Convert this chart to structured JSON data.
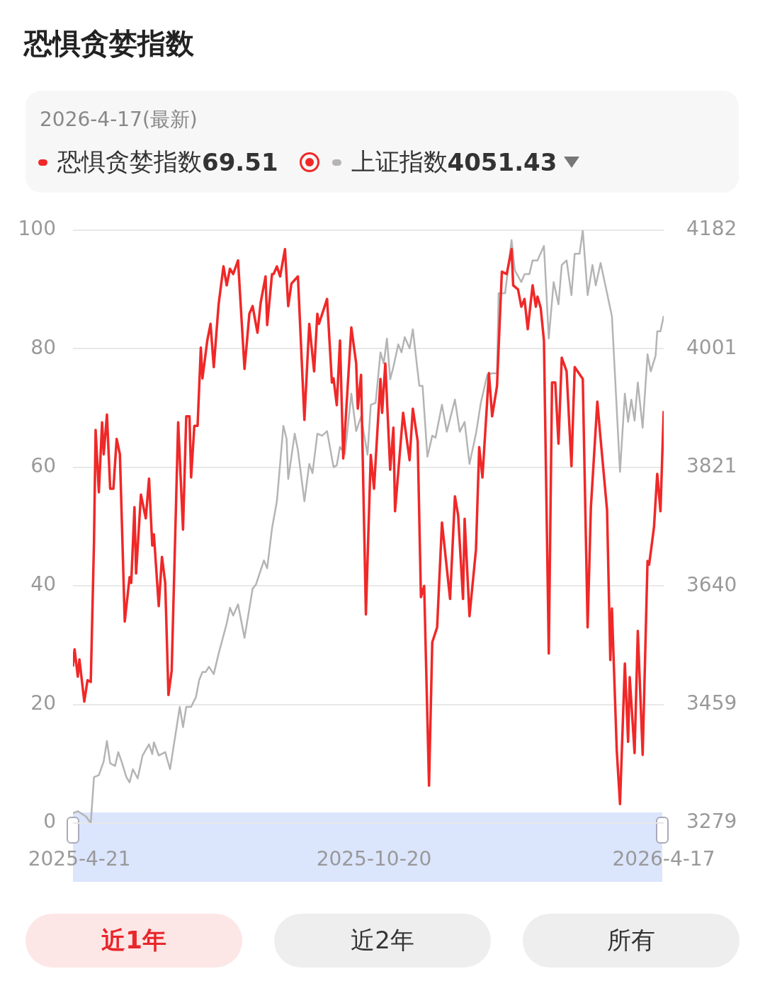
{
  "chart_data": {
    "type": "line",
    "title": "恐惧贪婪指数",
    "annotations": [
      "2026-4-17(最新)",
      "69.51",
      "4051.43",
      "近1年",
      "近2年",
      "所有"
    ],
    "legend": "top left",
    "grid": "y",
    "marker": "none",
    "xlim": [
      "2025-04-17",
      "2026-04-17"
    ],
    "xticks": [
      {
        "value": "2025-04-21",
        "label": "2025-4-21"
      },
      {
        "value": "2025-10-20",
        "label": "2025-10-20"
      },
      {
        "value": "2026-04-17",
        "label": "2026-4-17"
      }
    ],
    "ylim": [
      0,
      100
    ],
    "yticks": [
      0,
      20,
      40,
      60,
      80,
      100
    ],
    "y2lim": [
      3279,
      4182
    ],
    "y2ticks": [
      3279,
      3459,
      3640,
      3821,
      4001,
      4182
    ],
    "series": [
      {
        "name": "恐惧贪婪指数",
        "color": "#f02828",
        "x": [
          "2025-04-17",
          "2025-04-18",
          "2025-04-20",
          "2025-04-21",
          "2025-04-24",
          "2025-04-26",
          "2025-04-28",
          "2025-04-30",
          "2025-05-01",
          "2025-05-03",
          "2025-05-05",
          "2025-05-06",
          "2025-05-08",
          "2025-05-10",
          "2025-05-12",
          "2025-05-14",
          "2025-05-16",
          "2025-05-19",
          "2025-05-22",
          "2025-05-23",
          "2025-05-25",
          "2025-05-26",
          "2025-05-29",
          "2025-06-01",
          "2025-06-03",
          "2025-06-05",
          "2025-06-06",
          "2025-06-09",
          "2025-06-11",
          "2025-06-13",
          "2025-06-15",
          "2025-06-17",
          "2025-06-21",
          "2025-06-24",
          "2025-06-26",
          "2025-06-28",
          "2025-06-29",
          "2025-07-01",
          "2025-07-03",
          "2025-07-05",
          "2025-07-06",
          "2025-07-09",
          "2025-07-11",
          "2025-07-13",
          "2025-07-16",
          "2025-07-19",
          "2025-07-21",
          "2025-07-23",
          "2025-07-25",
          "2025-07-28",
          "2025-08-01",
          "2025-08-04",
          "2025-08-06",
          "2025-08-09",
          "2025-08-11",
          "2025-08-14",
          "2025-08-15",
          "2025-08-18",
          "2025-08-19",
          "2025-08-21",
          "2025-08-23",
          "2025-08-26",
          "2025-08-28",
          "2025-08-30",
          "2025-09-03",
          "2025-09-07",
          "2025-09-10",
          "2025-09-13",
          "2025-09-15",
          "2025-09-16",
          "2025-09-21",
          "2025-09-24",
          "2025-09-25",
          "2025-09-27",
          "2025-09-29",
          "2025-10-01",
          "2025-10-06",
          "2025-10-09",
          "2025-10-10",
          "2025-10-12",
          "2025-10-15",
          "2025-10-18",
          "2025-10-20",
          "2025-10-24",
          "2025-10-25",
          "2025-10-27",
          "2025-10-30",
          "2025-11-01",
          "2025-11-02",
          "2025-11-07",
          "2025-11-11",
          "2025-11-13",
          "2025-11-16",
          "2025-11-18",
          "2025-11-20",
          "2025-11-23",
          "2025-11-25",
          "2025-11-28",
          "2025-12-01",
          "2025-12-06",
          "2025-12-09",
          "2025-12-11",
          "2025-12-14",
          "2025-12-15",
          "2025-12-18",
          "2025-12-22",
          "2025-12-24",
          "2025-12-26",
          "2025-12-30",
          "2026-01-01",
          "2026-01-04",
          "2026-01-07",
          "2026-01-10",
          "2026-01-13",
          "2026-01-14",
          "2026-01-17",
          "2026-01-19",
          "2026-01-21",
          "2026-01-23",
          "2026-01-26",
          "2026-01-28",
          "2026-01-29",
          "2026-01-31",
          "2026-02-02",
          "2026-02-05",
          "2026-02-07",
          "2026-02-09",
          "2026-02-11",
          "2026-02-13",
          "2026-02-16",
          "2026-02-19",
          "2026-02-21",
          "2026-02-26",
          "2026-03-01",
          "2026-03-03",
          "2026-03-07",
          "2026-03-09",
          "2026-03-13",
          "2026-03-15",
          "2026-03-16",
          "2026-03-19",
          "2026-03-21",
          "2026-03-24",
          "2026-03-26",
          "2026-03-27",
          "2026-03-30",
          "2026-04-01",
          "2026-04-04",
          "2026-04-07",
          "2026-04-08",
          "2026-04-11",
          "2026-04-13",
          "2026-04-15",
          "2026-04-17"
        ],
        "values": [
          26.4,
          29.3,
          24.7,
          27.6,
          20.5,
          24.1,
          23.8,
          47.4,
          66.3,
          55.8,
          67.6,
          62.2,
          68.9,
          56.4,
          56.4,
          64.8,
          62.2,
          34.0,
          41.5,
          40.5,
          53.3,
          42.1,
          55.4,
          51.4,
          58.1,
          46.8,
          48.7,
          36.6,
          44.9,
          40.5,
          21.6,
          25.7,
          67.6,
          49.5,
          68.6,
          68.6,
          58.3,
          67.0,
          67.0,
          80.2,
          75.0,
          81.4,
          84.2,
          76.9,
          87.5,
          93.9,
          90.7,
          93.5,
          92.6,
          94.9,
          76.6,
          85.9,
          87.2,
          82.7,
          87.8,
          92.2,
          84.0,
          92.6,
          92.6,
          93.9,
          92.2,
          96.8,
          87.2,
          91.0,
          92.2,
          68.0,
          84.2,
          76.2,
          85.9,
          84.2,
          88.4,
          74.3,
          75.0,
          70.5,
          81.4,
          61.5,
          83.6,
          77.5,
          69.9,
          75.6,
          35.2,
          62.1,
          56.4,
          74.9,
          69.2,
          77.5,
          59.6,
          66.7,
          52.6,
          69.2,
          61.2,
          69.9,
          64.4,
          38.1,
          40.0,
          6.3,
          30.5,
          33.0,
          50.7,
          37.8,
          55.1,
          51.9,
          37.8,
          51.3,
          34.9,
          46.1,
          63.4,
          58.3,
          75.9,
          68.6,
          73.7,
          93.0,
          92.6,
          96.8,
          90.7,
          90.0,
          87.1,
          88.4,
          83.3,
          90.7,
          87.1,
          88.8,
          86.9,
          81.4,
          28.6,
          74.3,
          74.3,
          64.0,
          78.5,
          76.2,
          60.2,
          76.9,
          74.9,
          33.0,
          53.2,
          71.1,
          64.8,
          52.8,
          27.5,
          36.2,
          12.2,
          3.2,
          26.9,
          13.7,
          24.6,
          11.8,
          32.4,
          11.5,
          44.2,
          43.6,
          49.9,
          58.9,
          52.6,
          69.51
        ]
      },
      {
        "name": "上证指数",
        "color": "#b4b4b4",
        "axis": "y2",
        "x": [
          "2025-04-17",
          "2025-04-20",
          "2025-04-25",
          "2025-04-28",
          "2025-04-30",
          "2025-05-03",
          "2025-05-06",
          "2025-05-08",
          "2025-05-10",
          "2025-05-13",
          "2025-05-15",
          "2025-05-17",
          "2025-05-20",
          "2025-05-22",
          "2025-05-24",
          "2025-05-27",
          "2025-05-30",
          "2025-06-03",
          "2025-06-05",
          "2025-06-06",
          "2025-06-09",
          "2025-06-13",
          "2025-06-16",
          "2025-06-22",
          "2025-06-24",
          "2025-06-26",
          "2025-06-29",
          "2025-07-02",
          "2025-07-04",
          "2025-07-06",
          "2025-07-08",
          "2025-07-10",
          "2025-07-13",
          "2025-07-16",
          "2025-07-21",
          "2025-07-23",
          "2025-07-25",
          "2025-07-28",
          "2025-08-01",
          "2025-08-06",
          "2025-08-08",
          "2025-08-13",
          "2025-08-15",
          "2025-08-18",
          "2025-08-21",
          "2025-08-25",
          "2025-08-27",
          "2025-08-28",
          "2025-09-01",
          "2025-09-03",
          "2025-09-07",
          "2025-09-10",
          "2025-09-12",
          "2025-09-15",
          "2025-09-18",
          "2025-09-21",
          "2025-09-25",
          "2025-09-27",
          "2025-09-29",
          "2025-10-02",
          "2025-10-06",
          "2025-10-09",
          "2025-10-12",
          "2025-10-16",
          "2025-10-18",
          "2025-10-21",
          "2025-10-24",
          "2025-10-26",
          "2025-10-28",
          "2025-10-30",
          "2025-11-01",
          "2025-11-04",
          "2025-11-06",
          "2025-11-08",
          "2025-11-11",
          "2025-11-13",
          "2025-11-17",
          "2025-11-19",
          "2025-11-22",
          "2025-11-25",
          "2025-11-27",
          "2025-12-01",
          "2025-12-04",
          "2025-12-09",
          "2025-12-12",
          "2025-12-15",
          "2025-12-18",
          "2025-12-22",
          "2025-12-25",
          "2025-12-29",
          "2026-01-01",
          "2026-01-04",
          "2026-01-05",
          "2026-01-09",
          "2026-01-13",
          "2026-01-15",
          "2026-01-19",
          "2026-01-21",
          "2026-01-24",
          "2026-01-26",
          "2026-01-29",
          "2026-02-02",
          "2026-02-05",
          "2026-02-08",
          "2026-02-11",
          "2026-02-13",
          "2026-02-16",
          "2026-02-19",
          "2026-02-21",
          "2026-02-24",
          "2026-02-26",
          "2026-03-01",
          "2026-03-04",
          "2026-03-06",
          "2026-03-09",
          "2026-03-13",
          "2026-03-16",
          "2026-03-21",
          "2026-03-24",
          "2026-03-26",
          "2026-03-28",
          "2026-03-30",
          "2026-04-01",
          "2026-04-04",
          "2026-04-07",
          "2026-04-09",
          "2026-04-12",
          "2026-04-13",
          "2026-04-15",
          "2026-04-17"
        ],
        "values": [
          3294,
          3297,
          3289,
          3279,
          3349,
          3352,
          3373,
          3404,
          3370,
          3366,
          3387,
          3373,
          3349,
          3341,
          3361,
          3347,
          3382,
          3399,
          3384,
          3402,
          3382,
          3387,
          3361,
          3456,
          3425,
          3456,
          3456,
          3471,
          3497,
          3509,
          3509,
          3517,
          3506,
          3537,
          3583,
          3607,
          3595,
          3612,
          3561,
          3636,
          3642,
          3679,
          3667,
          3728,
          3769,
          3884,
          3864,
          3803,
          3872,
          3847,
          3769,
          3826,
          3812,
          3872,
          3869,
          3876,
          3821,
          3824,
          3852,
          3841,
          3933,
          3876,
          3898,
          3840,
          3916,
          3919,
          3996,
          3979,
          4017,
          3955,
          3974,
          4008,
          3996,
          4019,
          4002,
          4031,
          3945,
          3945,
          3837,
          3869,
          3866,
          3916,
          3875,
          3924,
          3875,
          3890,
          3826,
          3872,
          3919,
          3962,
          3964,
          3964,
          4086,
          4086,
          4167,
          4121,
          4103,
          4115,
          4115,
          4136,
          4136,
          4158,
          4017,
          4103,
          4069,
          4129,
          4136,
          4083,
          4146,
          4146,
          4182,
          4083,
          4129,
          4098,
          4132,
          4086,
          4051,
          3814,
          3933,
          3890,
          3924,
          3892,
          3950,
          3881,
          3993,
          3967,
          3991,
          4028,
          4028,
          4051.43
        ]
      }
    ]
  }
}
